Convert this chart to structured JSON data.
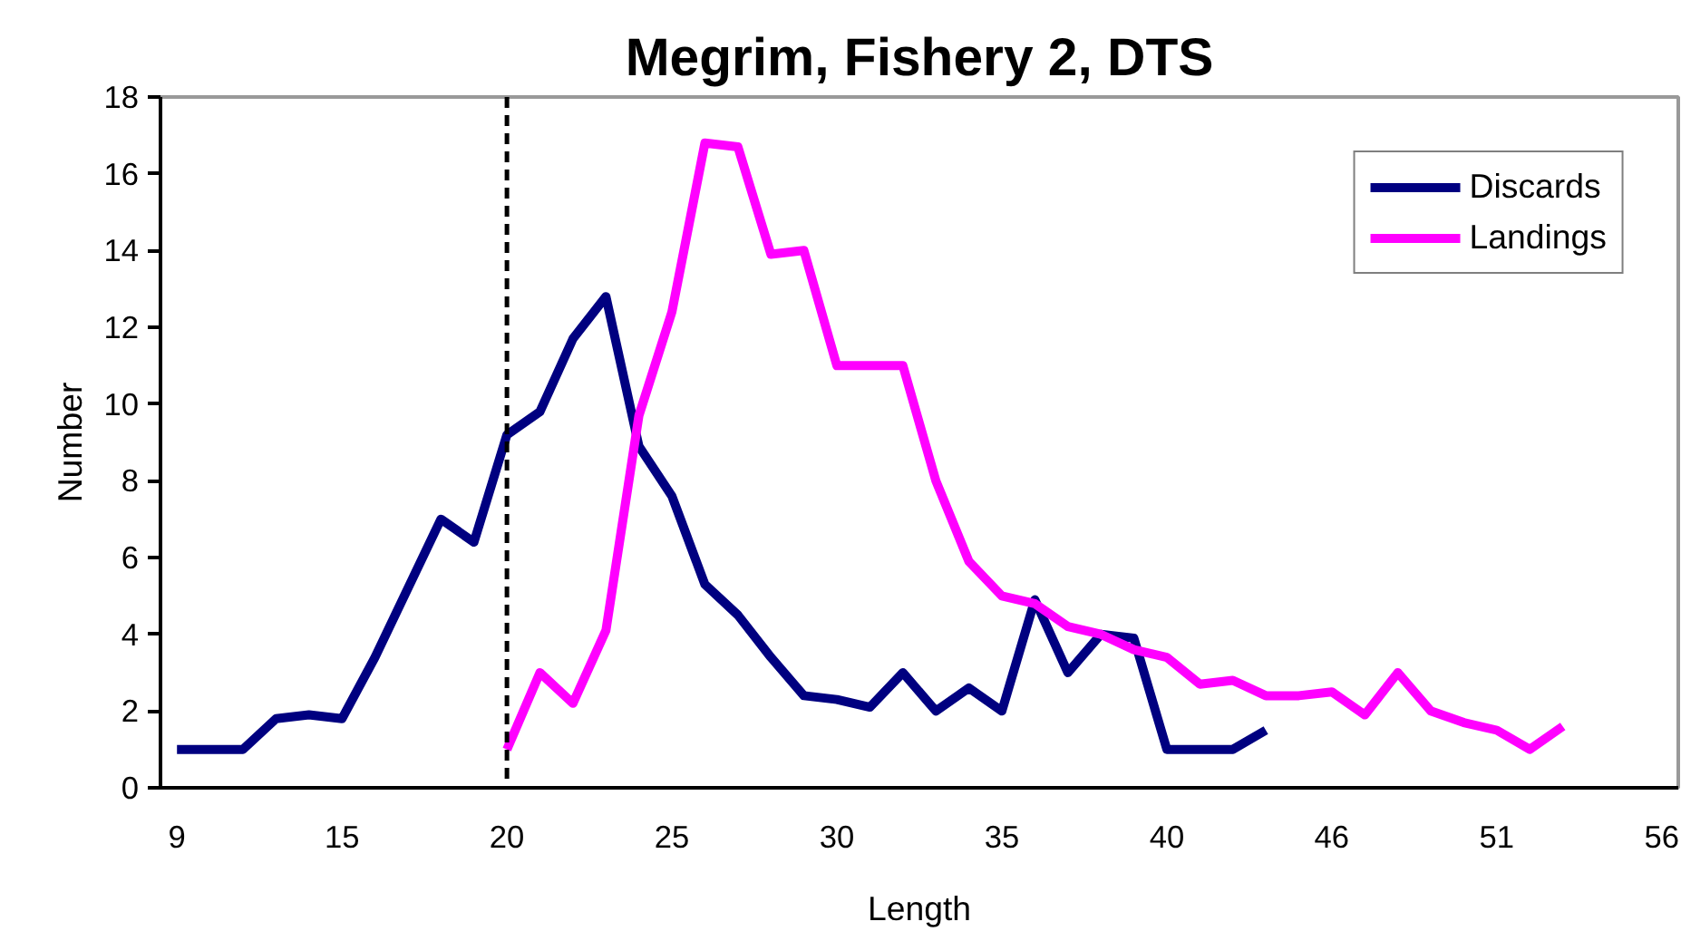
{
  "chart_data": {
    "type": "line",
    "title": "Megrim, Fishery 2, DTS",
    "xlabel": "Length",
    "ylabel": "Number",
    "categories": [
      "9",
      null,
      null,
      null,
      null,
      "15",
      null,
      null,
      null,
      null,
      "20",
      null,
      null,
      null,
      null,
      "25",
      null,
      null,
      null,
      null,
      "30",
      null,
      null,
      null,
      null,
      "35",
      null,
      null,
      null,
      null,
      "40",
      null,
      null,
      null,
      null,
      "46",
      null,
      null,
      null,
      null,
      "51",
      null,
      null,
      null,
      null,
      "56"
    ],
    "series": [
      {
        "name": "Discards",
        "color": "#000080",
        "values": [
          1.0,
          1.0,
          1.0,
          1.8,
          1.9,
          1.8,
          3.4,
          5.2,
          7.0,
          6.4,
          9.2,
          9.8,
          11.7,
          12.8,
          8.9,
          7.6,
          5.3,
          4.5,
          3.4,
          2.4,
          2.3,
          2.1,
          3.0,
          2.0,
          2.6,
          2.0,
          4.9,
          3.0,
          4.0,
          3.9,
          1.0,
          1.0,
          1.0,
          1.5,
          null,
          null,
          null,
          null,
          null,
          null,
          null,
          null,
          null,
          null,
          null,
          null
        ]
      },
      {
        "name": "Landings",
        "color": "#ff00ff",
        "values": [
          null,
          null,
          null,
          null,
          null,
          null,
          null,
          null,
          null,
          null,
          1.0,
          3.0,
          2.2,
          4.1,
          9.7,
          12.4,
          16.8,
          16.7,
          13.9,
          14.0,
          11.0,
          11.0,
          11.0,
          8.0,
          5.9,
          5.0,
          4.8,
          4.2,
          4.0,
          3.6,
          3.4,
          2.7,
          2.8,
          2.4,
          2.4,
          2.5,
          1.9,
          3.0,
          2.0,
          1.7,
          1.5,
          1.0,
          1.6,
          null,
          null,
          null
        ]
      }
    ],
    "ylim": [
      0,
      18
    ],
    "yticks": [
      0,
      2,
      4,
      6,
      8,
      10,
      12,
      14,
      16,
      18
    ],
    "ref_lines": [
      {
        "axis": "x",
        "value": "20",
        "color": "#000000",
        "line_style": "dashed"
      }
    ],
    "grid": false,
    "legend": "top right",
    "marker": "none",
    "line_style": "solid"
  }
}
